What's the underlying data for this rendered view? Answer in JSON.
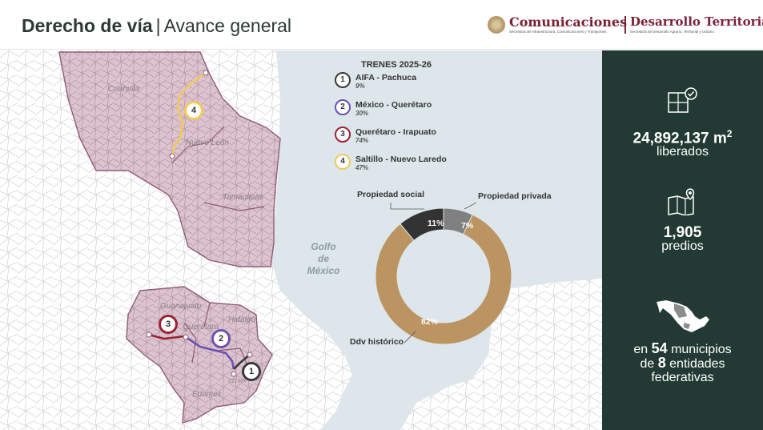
{
  "header": {
    "title_bold": "Derecho de vía",
    "separator": "|",
    "title_light": "Avance general",
    "logo_a": "Comunicaciones",
    "logo_a_sub": "Secretaría de Infraestructura, Comunicaciones y Transportes",
    "logo_b": "Desarrollo Territorial",
    "logo_b_sub": "Secretaría de Desarrollo Agrario, Territorial y Urbano"
  },
  "map": {
    "gulf_label": [
      "Golfo",
      "de",
      "México"
    ],
    "states": [
      "Coahuila",
      "Nuevo León",
      "Tamaulipas",
      "Guanajuato",
      "Querétaro",
      "Hidalgo",
      "Edomex",
      "CD MX"
    ],
    "badges": [
      "4",
      "3",
      "2",
      "1"
    ]
  },
  "legend": {
    "title": "TRENES 2025-26",
    "items": [
      {
        "num": "1",
        "name": "AIFA - Pachuca",
        "pct": "9%",
        "color": "#3a3a3a"
      },
      {
        "num": "2",
        "name": "México - Querétaro",
        "pct": "30%",
        "color": "#6a52b3"
      },
      {
        "num": "3",
        "name": "Querétaro - Irapuato",
        "pct": "74%",
        "color": "#9b2336"
      },
      {
        "num": "4",
        "name": "Saltillo - Nuevo Laredo",
        "pct": "47%",
        "color": "#f2c95a"
      }
    ]
  },
  "chart_data": {
    "type": "pie",
    "categories": [
      "Propiedad social",
      "Propiedad privada",
      "Ddv histórico"
    ],
    "values": [
      11,
      7,
      82
    ],
    "value_labels": [
      "11%",
      "7%",
      "82%"
    ],
    "colors": [
      "#333333",
      "#808080",
      "#bb9462"
    ]
  },
  "sidebar": {
    "area_value": "24,892,137 m",
    "area_sup": "2",
    "area_label": "liberados",
    "predios_value": "1,905",
    "predios_label": "predios",
    "entities_pre": "en",
    "entities_num1": "54",
    "entities_mid": "municipios",
    "entities_de": "de",
    "entities_num2": "8",
    "entities_post1": "entidades",
    "entities_post2": "federativas"
  }
}
